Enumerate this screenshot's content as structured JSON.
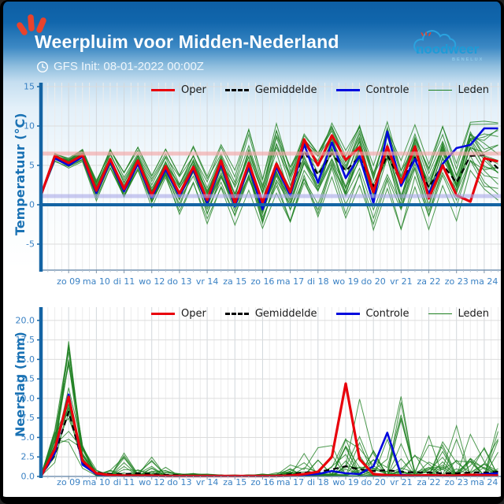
{
  "header": {
    "title": "Weerpluim voor Midden-Nederland",
    "init_label": "GFS Init: 08-01-2022 00:00Z",
    "logo": {
      "name": "noodweer",
      "sub": "BENELUX"
    }
  },
  "colors": {
    "brand_blue": "#1d9bd7",
    "accent_red": "#e8432c",
    "axis_blue": "#1464a4",
    "tick_blue": "#3b82c4"
  },
  "chart_data": [
    {
      "type": "line",
      "quantity": "temperature",
      "ylabel": "Temperatuur (°C)",
      "ylim": [
        -8.3,
        15.5
      ],
      "xlim": [
        0,
        16.6
      ],
      "grid": true,
      "legend_position": "top",
      "yticks": [
        {
          "v": 15,
          "label": "15"
        },
        {
          "v": 10,
          "label": "10"
        },
        {
          "v": 5,
          "label": "5"
        },
        {
          "v": 0,
          "label": "0"
        },
        {
          "v": -5,
          "label": "-5"
        }
      ],
      "xticks": [
        {
          "t": 1,
          "label": "zo 09"
        },
        {
          "t": 2,
          "label": "ma 10"
        },
        {
          "t": 3,
          "label": "di 11"
        },
        {
          "t": 4,
          "label": "wo 12"
        },
        {
          "t": 5,
          "label": "do 13"
        },
        {
          "t": 6,
          "label": "vr 14"
        },
        {
          "t": 7,
          "label": "za 15"
        },
        {
          "t": 8,
          "label": "zo 16"
        },
        {
          "t": 9,
          "label": "ma 17"
        },
        {
          "t": 10,
          "label": "di 18"
        },
        {
          "t": 11,
          "label": "wo 19"
        },
        {
          "t": 12,
          "label": "do 20"
        },
        {
          "t": 13,
          "label": "vr 21"
        },
        {
          "t": 14,
          "label": "za 22"
        },
        {
          "t": 15,
          "label": "zo 23"
        },
        {
          "t": 16,
          "label": "ma 24"
        }
      ],
      "x": [
        0,
        0.5,
        1,
        1.5,
        2,
        2.5,
        3,
        3.5,
        4,
        4.5,
        5,
        5.5,
        6,
        6.5,
        7,
        7.5,
        8,
        8.5,
        9,
        9.5,
        10,
        10.5,
        11,
        11.5,
        12,
        12.5,
        13,
        13.5,
        14,
        14.5,
        15,
        15.5,
        16,
        16.5
      ],
      "series": [
        {
          "name": "Oper",
          "color": "#e8000b",
          "dash": null,
          "width": 3.2,
          "z": 3,
          "values": [
            1.2,
            6.2,
            5.3,
            6.3,
            1.8,
            5.8,
            2.0,
            5.6,
            1.2,
            4.9,
            1.4,
            4.8,
            0.6,
            5.6,
            0.2,
            5.3,
            0.3,
            5.2,
            1.6,
            8.3,
            5.0,
            8.8,
            5.7,
            7.3,
            1.6,
            7.4,
            2.8,
            7.4,
            0.8,
            5.0,
            1.2,
            0.4,
            5.9,
            5.5
          ]
        },
        {
          "name": "Gemiddelde",
          "color": "#000000",
          "dash": "7,5",
          "width": 2.2,
          "z": 1,
          "values": [
            1.2,
            6.0,
            5.1,
            6.2,
            1.7,
            5.6,
            1.9,
            5.4,
            1.1,
            4.7,
            1.3,
            4.6,
            0.5,
            5.3,
            0.6,
            5.0,
            0.2,
            4.9,
            1.5,
            6.8,
            3.8,
            6.5,
            4.3,
            6.1,
            2.3,
            6.3,
            2.9,
            6.0,
            2.2,
            5.1,
            2.8,
            6.2,
            6.3,
            4.6
          ]
        },
        {
          "name": "Controle",
          "color": "#0008dd",
          "dash": null,
          "width": 2.6,
          "z": 2,
          "values": [
            1.2,
            5.9,
            5.0,
            6.1,
            1.5,
            5.5,
            1.7,
            5.2,
            0.9,
            4.5,
            1.1,
            4.5,
            0.2,
            5.2,
            -0.2,
            4.9,
            -0.6,
            4.8,
            1.2,
            7.7,
            2.8,
            7.9,
            3.4,
            6.2,
            0.2,
            9.3,
            2.4,
            5.8,
            1.4,
            5.2,
            7.2,
            7.6,
            9.7,
            9.7
          ]
        }
      ],
      "ensemble": {
        "name": "Leden",
        "color": "#1e8020",
        "width": 1,
        "opacity": 0.8,
        "count": 20,
        "min": [
          0.9,
          5.2,
          4.3,
          5.3,
          0.4,
          4.4,
          0.2,
          4.0,
          -0.8,
          3.0,
          -1.4,
          2.6,
          -2.6,
          2.0,
          -2.8,
          1.6,
          -3.2,
          1.2,
          -2.4,
          2.6,
          -1.8,
          3.0,
          -3.0,
          2.2,
          -3.8,
          1.8,
          -3.4,
          2.0,
          -3.4,
          1.4,
          -2.8,
          2.2,
          -2.0,
          -2.4
        ],
        "max": [
          1.6,
          7.0,
          6.3,
          7.3,
          3.4,
          7.2,
          4.2,
          7.4,
          3.8,
          7.2,
          4.4,
          7.6,
          3.8,
          7.8,
          4.6,
          9.8,
          3.4,
          10.6,
          5.2,
          9.2,
          6.8,
          10.6,
          7.2,
          11.0,
          5.6,
          10.8,
          6.2,
          10.4,
          5.4,
          10.2,
          5.8,
          11.2,
          11.0,
          10.8
        ]
      },
      "reference_lines": [
        {
          "name": "reference-band-warm",
          "value": 6.5,
          "color": "#f3a6a6",
          "width": 5,
          "opacity": 0.65
        },
        {
          "name": "reference-band-cold",
          "value": 1.1,
          "color": "#a9a9e8",
          "width": 5,
          "opacity": 0.6
        },
        {
          "name": "zero-degree-line",
          "value": 0,
          "color": "#1464a4",
          "width": 4,
          "opacity": 1
        }
      ],
      "legend_order": [
        "Oper",
        "Gemiddelde",
        "Controle",
        "Leden"
      ]
    },
    {
      "type": "line",
      "quantity": "precipitation",
      "ylabel": "Neerslag (mm)",
      "ylim": [
        0,
        21.7
      ],
      "xlim": [
        0,
        16.6
      ],
      "grid": true,
      "legend_position": "top",
      "yticks": [
        {
          "v": 20,
          "label": "20.0"
        },
        {
          "v": 17.5,
          "label": "17.5"
        },
        {
          "v": 15,
          "label": "15.0"
        },
        {
          "v": 12.5,
          "label": "12.5"
        },
        {
          "v": 10,
          "label": "10.0"
        },
        {
          "v": 7.5,
          "label": "7.5"
        },
        {
          "v": 5,
          "label": "5.0"
        },
        {
          "v": 2.5,
          "label": "2.5"
        },
        {
          "v": 0,
          "label": "0.0"
        }
      ],
      "xticks": [
        {
          "t": 1,
          "label": "zo 09"
        },
        {
          "t": 2,
          "label": "ma 10"
        },
        {
          "t": 3,
          "label": "di 11"
        },
        {
          "t": 4,
          "label": "wo 12"
        },
        {
          "t": 5,
          "label": "do 13"
        },
        {
          "t": 6,
          "label": "vr 14"
        },
        {
          "t": 7,
          "label": "za 15"
        },
        {
          "t": 8,
          "label": "zo 16"
        },
        {
          "t": 9,
          "label": "ma 17"
        },
        {
          "t": 10,
          "label": "di 18"
        },
        {
          "t": 11,
          "label": "wo 19"
        },
        {
          "t": 12,
          "label": "do 20"
        },
        {
          "t": 13,
          "label": "vr 21"
        },
        {
          "t": 14,
          "label": "za 22"
        },
        {
          "t": 15,
          "label": "zo 23"
        },
        {
          "t": 16,
          "label": "ma 24"
        }
      ],
      "x": [
        0,
        0.5,
        1,
        1.5,
        2,
        2.5,
        3,
        3.5,
        4,
        4.5,
        5,
        5.5,
        6,
        6.5,
        7,
        7.5,
        8,
        8.5,
        9,
        9.5,
        10,
        10.5,
        11,
        11.5,
        12,
        12.5,
        13,
        13.5,
        14,
        14.5,
        15,
        15.5,
        16,
        16.5
      ],
      "series": [
        {
          "name": "Oper",
          "color": "#e8000b",
          "dash": null,
          "width": 3.2,
          "z": 3,
          "values": [
            0,
            3.5,
            10.2,
            2.0,
            0.4,
            0.15,
            0.1,
            0.1,
            0.1,
            0.05,
            0.05,
            0.05,
            0.05,
            0.05,
            0.05,
            0.05,
            0.05,
            0.05,
            0.1,
            0.3,
            0.6,
            2.5,
            11.9,
            2.2,
            0.3,
            0.15,
            0.1,
            0.1,
            0.15,
            0.1,
            0.1,
            0.2,
            0.15,
            0.1
          ]
        },
        {
          "name": "Gemiddelde",
          "color": "#000000",
          "dash": "7,5",
          "width": 2.2,
          "z": 1,
          "values": [
            0,
            2.8,
            8.3,
            1.8,
            0.5,
            0.3,
            0.3,
            0.4,
            0.3,
            0.2,
            0.15,
            0.1,
            0.1,
            0.1,
            0.05,
            0.05,
            0.05,
            0.1,
            0.3,
            0.5,
            0.6,
            0.9,
            1.3,
            0.9,
            0.7,
            0.8,
            0.6,
            0.5,
            0.5,
            0.4,
            0.4,
            0.5,
            0.5,
            0.6
          ]
        },
        {
          "name": "Controle",
          "color": "#0008dd",
          "dash": null,
          "width": 2.6,
          "z": 2,
          "values": [
            0,
            3.0,
            10.5,
            1.5,
            0.3,
            0.1,
            0.1,
            0.1,
            0.05,
            0.05,
            0.05,
            0.05,
            0.05,
            0.05,
            0.05,
            0.05,
            0.05,
            0.05,
            0.1,
            0.2,
            0.3,
            0.7,
            0.4,
            0.3,
            1.3,
            5.6,
            0.2,
            0.1,
            0.1,
            0.1,
            0.1,
            0.15,
            0.3,
            0.4
          ]
        }
      ],
      "ensemble": {
        "name": "Leden",
        "color": "#1e8020",
        "width": 1,
        "opacity": 0.8,
        "count": 20,
        "min": [
          0,
          0,
          0,
          0,
          0,
          0,
          0,
          0,
          0,
          0,
          0,
          0,
          0,
          0,
          0,
          0,
          0,
          0,
          0,
          0,
          0,
          0,
          0,
          0,
          0,
          0,
          0,
          0,
          0,
          0,
          0,
          0,
          0,
          0
        ],
        "max": [
          0.2,
          6.0,
          17.5,
          4.0,
          1.2,
          0.8,
          3.0,
          1.0,
          3.2,
          2.8,
          0.6,
          0.4,
          0.3,
          0.2,
          0.2,
          0.2,
          0.3,
          0.5,
          1.5,
          3.5,
          8.7,
          4.5,
          7.0,
          14.0,
          3.5,
          5.0,
          10.5,
          4.0,
          5.5,
          4.5,
          6.5,
          6.3,
          4.0,
          6.8
        ]
      },
      "reference_lines": [],
      "legend_order": [
        "Oper",
        "Gemiddelde",
        "Controle",
        "Leden"
      ]
    }
  ]
}
